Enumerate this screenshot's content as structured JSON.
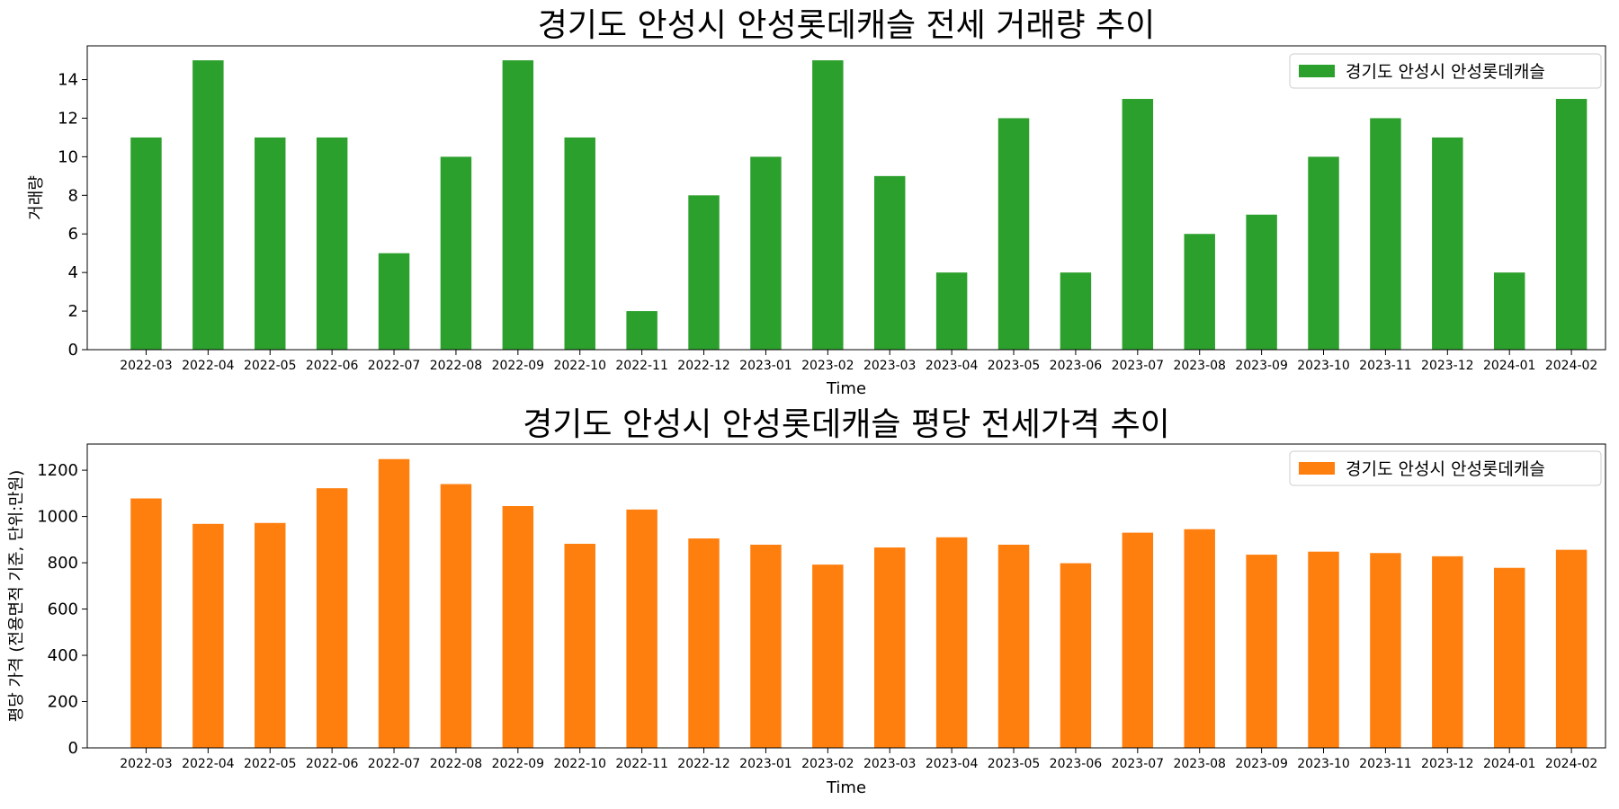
{
  "chart_data": [
    {
      "type": "bar",
      "title": "경기도 안성시 안성롯데캐슬 전세 거래량 추이",
      "xlabel": "Time",
      "ylabel": "거래량",
      "categories": [
        "2022-03",
        "2022-04",
        "2022-05",
        "2022-06",
        "2022-07",
        "2022-08",
        "2022-09",
        "2022-10",
        "2022-11",
        "2022-12",
        "2023-01",
        "2023-02",
        "2023-03",
        "2023-04",
        "2023-05",
        "2023-06",
        "2023-07",
        "2023-08",
        "2023-09",
        "2023-10",
        "2023-11",
        "2023-12",
        "2024-01",
        "2024-02"
      ],
      "series": [
        {
          "name": "경기도 안성시 안성롯데캐슬",
          "color": "#2ca02c",
          "values": [
            11,
            15,
            11,
            11,
            5,
            10,
            15,
            11,
            2,
            8,
            10,
            15,
            9,
            4,
            12,
            4,
            13,
            6,
            7,
            10,
            12,
            11,
            4,
            13
          ]
        }
      ],
      "ylim": [
        0,
        15.75
      ],
      "yticks": [
        0,
        2,
        4,
        6,
        8,
        10,
        12,
        14
      ],
      "legend": "top-right",
      "grid": false
    },
    {
      "type": "bar",
      "title": "경기도 안성시 안성롯데캐슬 평당 전세가격 추이",
      "xlabel": "Time",
      "ylabel": "평당 가격 (전용면적 기준, 단위:만원)",
      "categories": [
        "2022-03",
        "2022-04",
        "2022-05",
        "2022-06",
        "2022-07",
        "2022-08",
        "2022-09",
        "2022-10",
        "2022-11",
        "2022-12",
        "2023-01",
        "2023-02",
        "2023-03",
        "2023-04",
        "2023-05",
        "2023-06",
        "2023-07",
        "2023-08",
        "2023-09",
        "2023-10",
        "2023-11",
        "2023-12",
        "2024-01",
        "2024-02"
      ],
      "series": [
        {
          "name": "경기도 안성시 안성롯데캐슬",
          "color": "#ff7f0e",
          "values": [
            1078,
            968,
            972,
            1122,
            1248,
            1140,
            1045,
            882,
            1030,
            905,
            878,
            792,
            866,
            910,
            878,
            798,
            930,
            945,
            835,
            848,
            842,
            828,
            778,
            856
          ]
        }
      ],
      "ylim": [
        0,
        1313
      ],
      "yticks": [
        0,
        200,
        400,
        600,
        800,
        1000,
        1200
      ],
      "legend": "top-right",
      "grid": false
    }
  ]
}
